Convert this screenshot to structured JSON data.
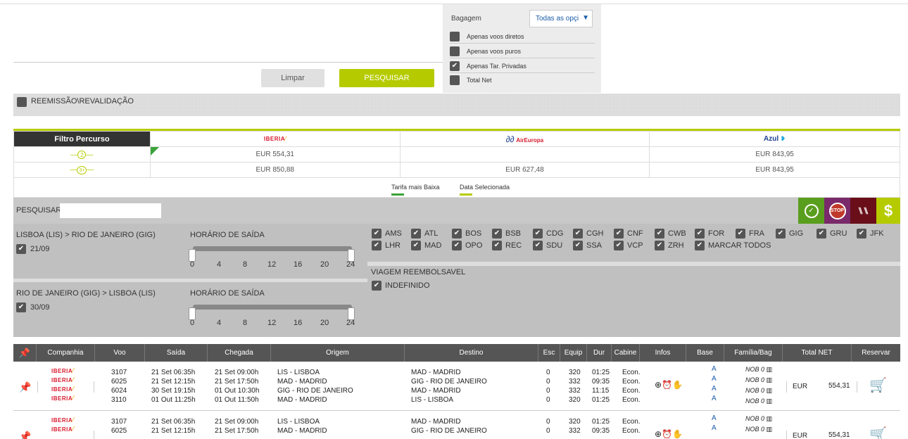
{
  "buttons": {
    "clear": "Limpar",
    "search": "PESQUISAR"
  },
  "filters": {
    "baggage_label": "Bagagem",
    "baggage_value": "Todas as opçi",
    "options": [
      {
        "label": "Apenas voos diretos",
        "checked": false
      },
      {
        "label": "Apenas voos puros",
        "checked": false
      },
      {
        "label": "Apenas Tar. Privadas",
        "checked": true
      },
      {
        "label": "Total Net",
        "checked": false
      }
    ]
  },
  "reemissao": {
    "label": "REEMISSÃO\\REVALIDAÇÃO"
  },
  "filter_table": {
    "header": "Filtro Percurso",
    "airlines": [
      "IBERIA",
      "AirEuropa",
      "Azul"
    ],
    "rows": [
      {
        "stops": "2",
        "prices": [
          "EUR 554,31",
          "",
          "EUR 843,95"
        ]
      },
      {
        "stops": "3+",
        "prices": [
          "EUR 850,88",
          "EUR 627,48",
          "EUR 843,95"
        ]
      }
    ],
    "legend": [
      "Tarifa mais Baixa",
      "Data Selecionada"
    ]
  },
  "search": {
    "label": "PESQUISAR",
    "value": ""
  },
  "segments": [
    {
      "route": "LISBOA (LIS) > RIO DE JANEIRO (GIG)",
      "date": "21/09",
      "hours_label": "HORÁRIO DE SAÍDA"
    },
    {
      "route": "RIO DE JANEIRO (GIG) > LISBOA (LIS)",
      "date": "30/09",
      "hours_label": "HORÁRIO DE SAÍDA"
    }
  ],
  "ticks": [
    "0",
    "4",
    "8",
    "12",
    "16",
    "20",
    "24"
  ],
  "airports": [
    "AMS",
    "ATL",
    "BOS",
    "BSB",
    "CDG",
    "CGH",
    "CNF",
    "CWB",
    "FOR",
    "FRA",
    "GIG",
    "GRU",
    "JFK",
    "LHR",
    "MAD",
    "OPO",
    "REC",
    "SDU",
    "SSA",
    "VCP",
    "ZRH",
    "MARCAR TODOS"
  ],
  "refundable": {
    "title": "VIAGEM REEMBOLSAVEL",
    "option": "INDEFINIDO"
  },
  "results_header": [
    "Companhia",
    "Voo",
    "Saída",
    "Chegada",
    "Origem",
    "Destino",
    "Esc",
    "Equip",
    "Dur",
    "Cabine",
    "Infos",
    "Base",
    "Família/Bag",
    "Total NET",
    "Reservar"
  ],
  "results": [
    {
      "legs": [
        {
          "airline": "IBERIA",
          "flight": "3107",
          "dep": "21 Set 06:35h",
          "arr": "21 Set 09:00h",
          "orig": "LIS - LISBOA",
          "dest": "MAD - MADRID",
          "stops": "0",
          "equip": "320",
          "dur": "01:25",
          "cabin": "Econ.",
          "base": "A",
          "family": "NOB 0"
        },
        {
          "airline": "IBERIA",
          "flight": "6025",
          "dep": "21 Set 12:15h",
          "arr": "21 Set 17:50h",
          "orig": "MAD - MADRID",
          "dest": "GIG - RIO DE JANEIRO",
          "stops": "0",
          "equip": "332",
          "dur": "09:35",
          "cabin": "Econ.",
          "base": "A",
          "family": "NOB 0"
        },
        {
          "airline": "IBERIA",
          "flight": "6024",
          "dep": "30 Set 19:15h",
          "arr": "01 Out 10:30h",
          "orig": "GIG - RIO DE JANEIRO",
          "dest": "MAD - MADRID",
          "stops": "0",
          "equip": "332",
          "dur": "11:15",
          "cabin": "Econ.",
          "base": "A",
          "family": "NOB 0"
        },
        {
          "airline": "IBERIA",
          "flight": "3110",
          "dep": "01 Out 11:25h",
          "arr": "01 Out 11:50h",
          "orig": "MAD - MADRID",
          "dest": "LIS - LISBOA",
          "stops": "0",
          "equip": "320",
          "dur": "01:25",
          "cabin": "Econ.",
          "base": "A",
          "family": "NOB 0"
        }
      ],
      "currency": "EUR",
      "total": "554,31"
    },
    {
      "legs": [
        {
          "airline": "IBERIA",
          "flight": "3107",
          "dep": "21 Set 06:35h",
          "arr": "21 Set 09:00h",
          "orig": "LIS - LISBOA",
          "dest": "MAD - MADRID",
          "stops": "0",
          "equip": "320",
          "dur": "01:25",
          "cabin": "Econ.",
          "base": "A",
          "family": "NOB 0"
        },
        {
          "airline": "IBERIA",
          "flight": "6025",
          "dep": "21 Set 12:15h",
          "arr": "21 Set 17:50h",
          "orig": "MAD - MADRID",
          "dest": "GIG - RIO DE JANEIRO",
          "stops": "0",
          "equip": "332",
          "dur": "09:35",
          "cabin": "Econ.",
          "base": "A",
          "family": "NOB 0"
        }
      ],
      "currency": "EUR",
      "total": "554,31"
    }
  ]
}
